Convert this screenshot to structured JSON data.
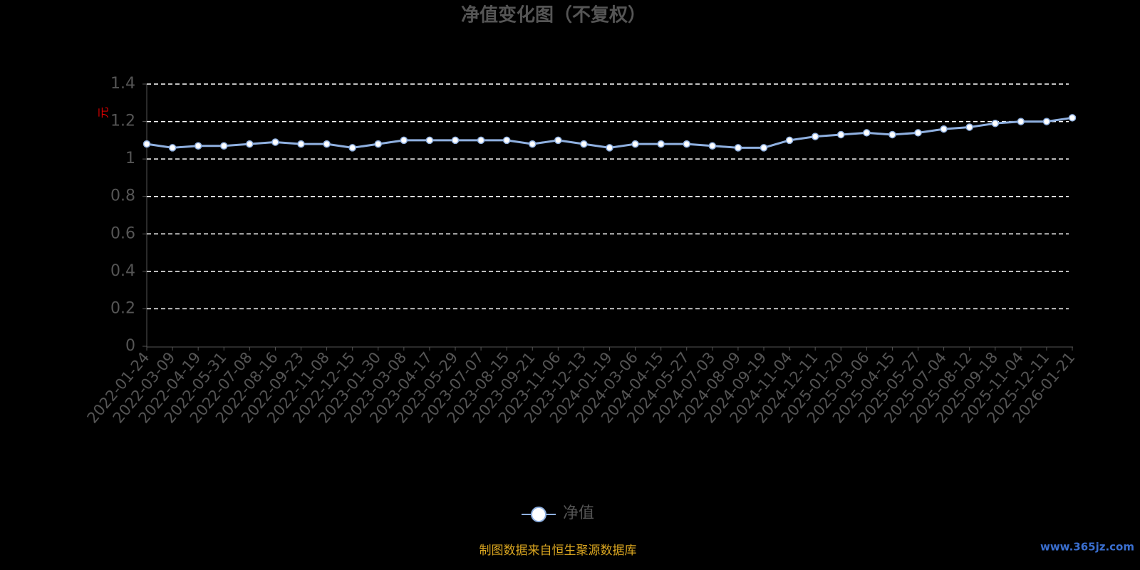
{
  "chart_data": {
    "type": "line",
    "title": "净值变化图（不复权）",
    "y_label": "元",
    "source": "制图数据来自恒生聚源数据库",
    "watermark": "www.365jz.com",
    "categories": [
      "2022-01-24",
      "2022-03-09",
      "2022-04-19",
      "2022-05-31",
      "2022-07-08",
      "2022-08-16",
      "2022-09-23",
      "2022-11-08",
      "2022-12-15",
      "2023-01-30",
      "2023-03-08",
      "2023-04-17",
      "2023-05-29",
      "2023-07-07",
      "2023-08-15",
      "2023-09-21",
      "2023-11-06",
      "2023-12-13",
      "2024-01-19",
      "2024-03-06",
      "2024-04-15",
      "2024-05-27",
      "2024-07-03",
      "2024-08-09",
      "2024-09-19",
      "2024-11-04",
      "2024-12-11",
      "2025-01-20",
      "2025-03-06",
      "2025-04-15",
      "2025-05-27",
      "2025-07-04",
      "2025-08-12",
      "2025-09-18",
      "2025-11-04",
      "2025-12-11",
      "2026-01-21"
    ],
    "series": [
      {
        "name": "净值",
        "color": "#8fb0e0",
        "values": [
          1.08,
          1.06,
          1.07,
          1.07,
          1.08,
          1.09,
          1.08,
          1.08,
          1.06,
          1.08,
          1.1,
          1.1,
          1.1,
          1.1,
          1.1,
          1.08,
          1.1,
          1.08,
          1.06,
          1.08,
          1.08,
          1.08,
          1.07,
          1.06,
          1.06,
          1.1,
          1.12,
          1.13,
          1.14,
          1.13,
          1.14,
          1.16,
          1.17,
          1.19,
          1.2,
          1.2,
          1.22
        ]
      }
    ],
    "ylim": [
      0,
      1.4
    ],
    "yticks": [
      0,
      0.2,
      0.4,
      0.6,
      0.8,
      1,
      1.2,
      1.4
    ],
    "grid": true
  }
}
